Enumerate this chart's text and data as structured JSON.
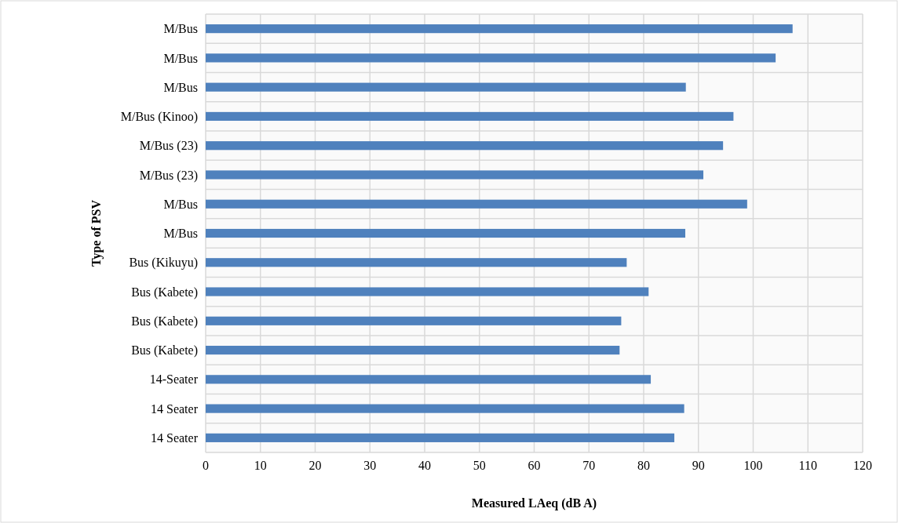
{
  "chart_data": {
    "type": "bar",
    "orientation": "horizontal",
    "xlabel": "Measured LAeq (dB A)",
    "ylabel": "Type of PSV",
    "categories": [
      "M/Bus",
      "M/Bus",
      "M/Bus",
      "M/Bus (Kinoo)",
      "M/Bus (23)",
      "M/Bus (23)",
      "M/Bus",
      "M/Bus",
      "Bus (Kikuyu)",
      "Bus (Kabete)",
      "Bus (Kabete)",
      "Bus (Kabete)",
      "14-Seater",
      "14 Seater",
      "14 Seater"
    ],
    "values": [
      107.2,
      104.1,
      87.7,
      96.4,
      94.5,
      90.9,
      98.9,
      87.6,
      76.9,
      80.9,
      75.9,
      75.6,
      81.3,
      87.4,
      85.6
    ],
    "color": "#4f81bd",
    "xlim": [
      0,
      120
    ],
    "xticks": [
      0,
      10,
      20,
      30,
      40,
      50,
      60,
      70,
      80,
      90,
      100,
      110,
      120
    ],
    "grid": true
  }
}
